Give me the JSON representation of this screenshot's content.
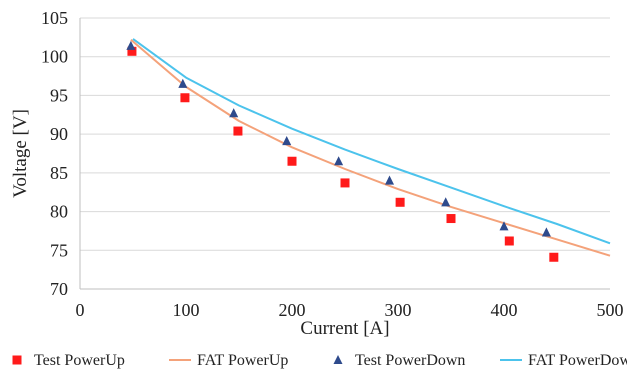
{
  "chart_data": {
    "type": "scatter",
    "title": "",
    "xlabel": "Current [A]",
    "ylabel": "Voltage [V]",
    "xlim": [
      0,
      500
    ],
    "ylim": [
      70,
      105
    ],
    "xticks": [
      0,
      100,
      200,
      300,
      400,
      500
    ],
    "yticks": [
      70,
      75,
      80,
      85,
      90,
      95,
      100,
      105
    ],
    "grid": "horizontal",
    "legend_position": "bottom",
    "series": [
      {
        "name": "Test PowerUp",
        "kind": "points",
        "marker": "square",
        "color": "#ff1a1a",
        "x": [
          49,
          99,
          149,
          200,
          250,
          302,
          350,
          405,
          447
        ],
        "y": [
          100.7,
          94.7,
          90.4,
          86.5,
          83.7,
          81.2,
          79.1,
          76.2,
          74.1
        ]
      },
      {
        "name": "FAT PowerUp",
        "kind": "line",
        "color": "#f4a27a",
        "x": [
          48,
          100,
          150,
          200,
          250,
          300,
          350,
          400,
          450,
          500
        ],
        "y": [
          102.2,
          96.1,
          91.7,
          88.3,
          85.5,
          82.9,
          80.6,
          78.5,
          76.4,
          74.3
        ]
      },
      {
        "name": "Test PowerDown",
        "kind": "points",
        "marker": "triangle",
        "color": "#2e4a8c",
        "x": [
          48,
          97,
          145,
          195,
          244,
          292,
          345,
          400,
          440
        ],
        "y": [
          101.4,
          96.5,
          92.7,
          89.1,
          86.5,
          84.0,
          81.2,
          78.1,
          77.3
        ]
      },
      {
        "name": "FAT PowerDown",
        "kind": "line",
        "color": "#4cc3ec",
        "x": [
          50,
          100,
          150,
          200,
          250,
          300,
          350,
          400,
          450,
          500
        ],
        "y": [
          102.3,
          97.3,
          93.7,
          90.7,
          88.0,
          85.5,
          83.1,
          80.7,
          78.4,
          75.9
        ]
      }
    ]
  }
}
